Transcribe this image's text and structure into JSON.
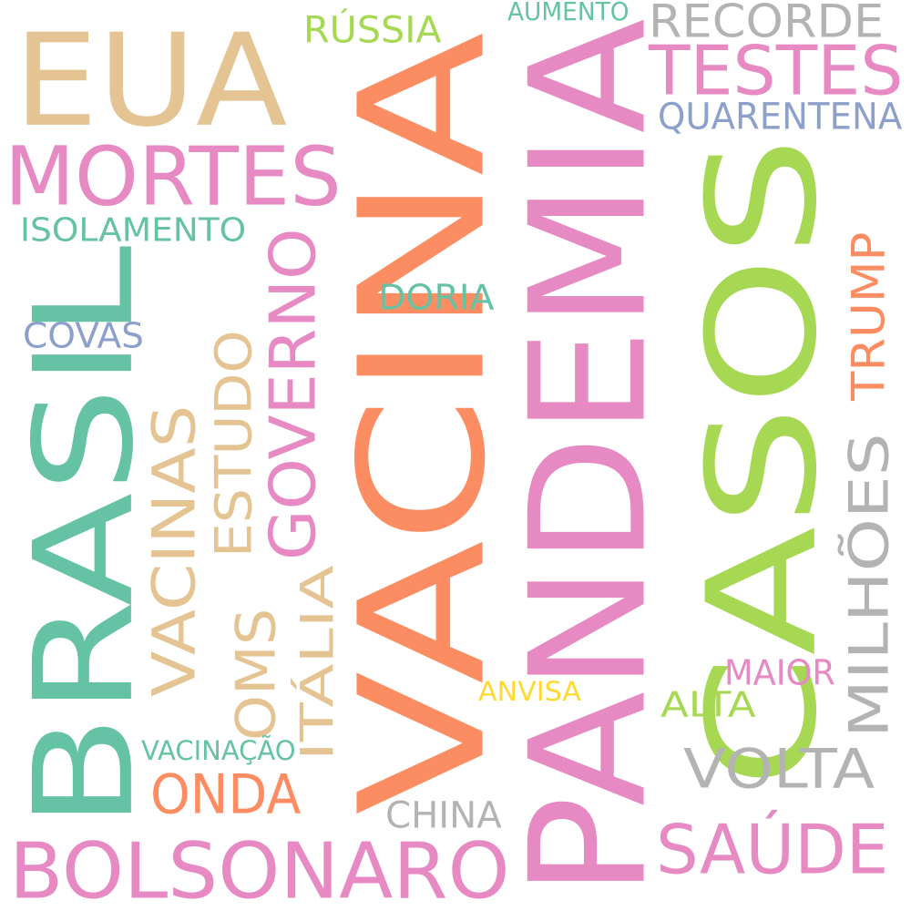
{
  "palette": {
    "green_teal": "#66c2a5",
    "orange": "#fc8d62",
    "periwinkle": "#8da0cb",
    "pink": "#e78ac3",
    "lime": "#a6d854",
    "yellow": "#ffd92f",
    "tan": "#e5c494",
    "gray": "#b3b3b3"
  },
  "words": [
    {
      "text": "VACINA",
      "color": "#fc8d62",
      "orientation": "vertical"
    },
    {
      "text": "PANDEMIA",
      "color": "#e78ac3",
      "orientation": "vertical"
    },
    {
      "text": "BRASIL",
      "color": "#66c2a5",
      "orientation": "vertical"
    },
    {
      "text": "CASOS",
      "color": "#a6d854",
      "orientation": "vertical"
    },
    {
      "text": "EUA",
      "color": "#e5c494",
      "orientation": "horizontal"
    },
    {
      "text": "BOLSONARO",
      "color": "#e78ac3",
      "orientation": "horizontal"
    },
    {
      "text": "MORTES",
      "color": "#e78ac3",
      "orientation": "horizontal"
    },
    {
      "text": "TESTES",
      "color": "#e78ac3",
      "orientation": "horizontal"
    },
    {
      "text": "RECORDE",
      "color": "#b3b3b3",
      "orientation": "horizontal"
    },
    {
      "text": "SAÚDE",
      "color": "#e78ac3",
      "orientation": "horizontal"
    },
    {
      "text": "VOLTA",
      "color": "#b3b3b3",
      "orientation": "horizontal"
    },
    {
      "text": "ONDA",
      "color": "#fc8d62",
      "orientation": "horizontal"
    },
    {
      "text": "GOVERNO",
      "color": "#e78ac3",
      "orientation": "vertical"
    },
    {
      "text": "VACINAS",
      "color": "#e5c494",
      "orientation": "vertical"
    },
    {
      "text": "MILHÕES",
      "color": "#b3b3b3",
      "orientation": "vertical"
    },
    {
      "text": "ESTUDO",
      "color": "#e5c494",
      "orientation": "vertical"
    },
    {
      "text": "OMS",
      "color": "#e5c494",
      "orientation": "vertical"
    },
    {
      "text": "ITÁLIA",
      "color": "#e5c494",
      "orientation": "vertical"
    },
    {
      "text": "TRUMP",
      "color": "#fc8d62",
      "orientation": "vertical"
    },
    {
      "text": "QUARENTENA",
      "color": "#8da0cb",
      "orientation": "horizontal"
    },
    {
      "text": "ISOLAMENTO",
      "color": "#66c2a5",
      "orientation": "horizontal"
    },
    {
      "text": "DORIA",
      "color": "#66c2a5",
      "orientation": "horizontal"
    },
    {
      "text": "COVAS",
      "color": "#8da0cb",
      "orientation": "horizontal"
    },
    {
      "text": "RÚSSIA",
      "color": "#a6d854",
      "orientation": "horizontal"
    },
    {
      "text": "AUMENTO",
      "color": "#66c2a5",
      "orientation": "horizontal"
    },
    {
      "text": "MAIOR",
      "color": "#e78ac3",
      "orientation": "horizontal"
    },
    {
      "text": "ALTA",
      "color": "#a6d854",
      "orientation": "horizontal"
    },
    {
      "text": "ANVISA",
      "color": "#ffd92f",
      "orientation": "horizontal"
    },
    {
      "text": "VACINAÇÃO",
      "color": "#66c2a5",
      "orientation": "horizontal"
    },
    {
      "text": "CHINA",
      "color": "#b3b3b3",
      "orientation": "horizontal"
    }
  ]
}
